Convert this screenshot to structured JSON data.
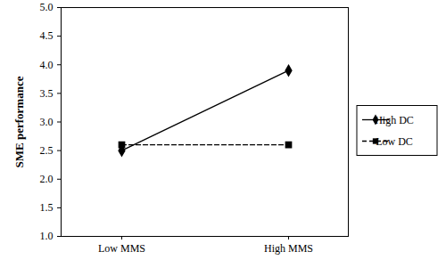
{
  "chart_data": {
    "type": "line",
    "categories": [
      "Low MMS",
      "High MMS"
    ],
    "y_label": "SME performance",
    "ylim": [
      1,
      5
    ],
    "yticks": [
      1,
      1.5,
      2,
      2.5,
      3,
      3.5,
      4,
      4.5,
      5
    ],
    "grid": false,
    "legend": "right",
    "series": [
      {
        "name": "High DC",
        "color": "#000000",
        "marker": "diamond",
        "line_style": "solid",
        "values": [
          2.5,
          3.9
        ]
      },
      {
        "name": "Low DC",
        "color": "#000000",
        "marker": "square",
        "line_style": "dashed",
        "values": [
          2.6,
          2.6
        ]
      }
    ]
  }
}
